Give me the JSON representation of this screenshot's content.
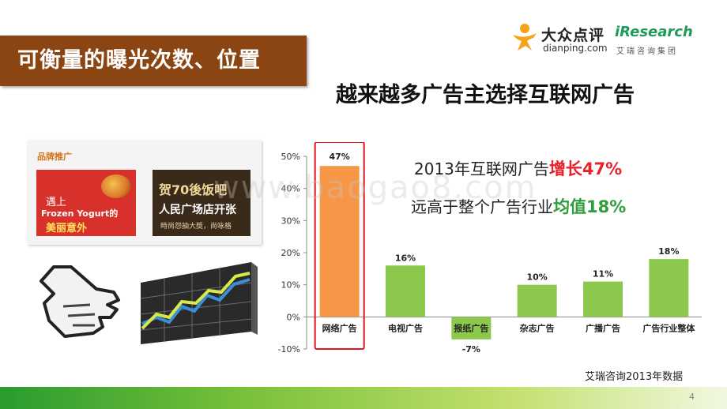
{
  "title": "可衡量的曝光次数、位置",
  "subtitle": "越来越多广告主选择互联网广告",
  "logos": {
    "dianping_cn": "大众点评",
    "dianping_en": "dianping.com",
    "iresearch_en": "iResearch",
    "iresearch_cn": "艾瑞咨询集团"
  },
  "ad_panel": {
    "heading": "品牌推广",
    "ad1": {
      "line1": "遇上",
      "line2": "Frozen Yogurt的",
      "line3": "美丽意外"
    },
    "ad2": {
      "line1": "贺70後饭吧",
      "line2": "人民广场店开张",
      "line3": "時尚怨抽大獎，尚咏格"
    }
  },
  "icons": {
    "hand": "pointing-hand-icon",
    "graph": "rising-graph-icon"
  },
  "note1": {
    "text": "2013年互联网广告",
    "highlight": "增长47%"
  },
  "note2": {
    "text": "远高于整个广告行业",
    "highlight": "均值18%"
  },
  "source": "艾瑞咨询2013年数据",
  "page_number": "4",
  "watermark": "www.baogao8.com",
  "colors": {
    "title_bar": "#8b4513",
    "highlight_bar": "#f79646",
    "bar": "#8cc84b",
    "growth_red": "#e8212b",
    "avg_green": "#2f9e3a"
  },
  "chart_data": {
    "type": "bar",
    "categories": [
      "网络广告",
      "电视广告",
      "报纸广告",
      "杂志广告",
      "广播广告",
      "广告行业整体"
    ],
    "values": [
      47,
      16,
      -7,
      10,
      11,
      18
    ],
    "value_labels": [
      "47%",
      "16%",
      "-7%",
      "10%",
      "11%",
      "18%"
    ],
    "highlight_index": 0,
    "ylim": [
      -10,
      50
    ],
    "yticks": [
      -10,
      0,
      10,
      20,
      30,
      40,
      50
    ],
    "ytick_labels": [
      "-10%",
      "0%",
      "10%",
      "20%",
      "30%",
      "40%",
      "50%"
    ],
    "grid": false
  }
}
